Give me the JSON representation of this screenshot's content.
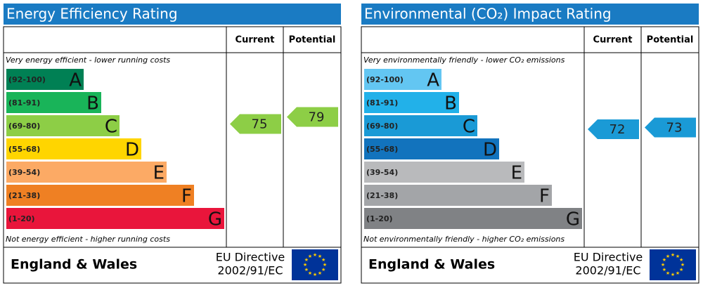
{
  "chart_data": [
    {
      "type": "epc",
      "title": "Energy Efficiency Rating",
      "column_headers": [
        "Current",
        "Potential"
      ],
      "top_text": "Very energy efficient - lower running costs",
      "bottom_text": "Not energy efficient - higher running costs",
      "bands": [
        {
          "range": "(92-100)",
          "letter": "A",
          "color": "#008054"
        },
        {
          "range": "(81-91)",
          "letter": "B",
          "color": "#19b459"
        },
        {
          "range": "(69-80)",
          "letter": "C",
          "color": "#8dce46"
        },
        {
          "range": "(55-68)",
          "letter": "D",
          "color": "#ffd500"
        },
        {
          "range": "(39-54)",
          "letter": "E",
          "color": "#fcaa65"
        },
        {
          "range": "(21-38)",
          "letter": "F",
          "color": "#ef8023"
        },
        {
          "range": "(1-20)",
          "letter": "G",
          "color": "#e9153b"
        }
      ],
      "current": 75,
      "potential": 79,
      "footer": {
        "region": "England & Wales",
        "directive": [
          "EU Directive",
          "2002/91/EC"
        ]
      }
    },
    {
      "type": "epc",
      "title": "Environmental (CO₂) Impact Rating",
      "column_headers": [
        "Current",
        "Potential"
      ],
      "top_text": "Very environmentally friendly - lower CO₂ emissions",
      "bottom_text": "Not environmentally friendly - higher CO₂ emissions",
      "bands": [
        {
          "range": "(92-100)",
          "letter": "A",
          "color": "#63c6f2"
        },
        {
          "range": "(81-91)",
          "letter": "B",
          "color": "#22b1e9"
        },
        {
          "range": "(69-80)",
          "letter": "C",
          "color": "#1a9ad6"
        },
        {
          "range": "(55-68)",
          "letter": "D",
          "color": "#1273bd"
        },
        {
          "range": "(39-54)",
          "letter": "E",
          "color": "#b9babc"
        },
        {
          "range": "(21-38)",
          "letter": "F",
          "color": "#a3a5a8"
        },
        {
          "range": "(1-20)",
          "letter": "G",
          "color": "#808285"
        }
      ],
      "current": 72,
      "potential": 73,
      "footer": {
        "region": "England & Wales",
        "directive": [
          "EU Directive",
          "2002/91/EC"
        ]
      }
    }
  ]
}
